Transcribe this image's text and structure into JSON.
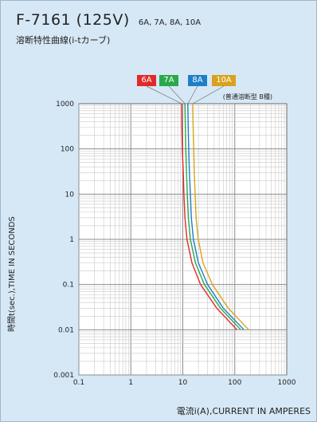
{
  "header": {
    "title": "F-7161 (125V)",
    "ratings": "6A, 7A, 8A, 10A",
    "subtitle": "溶断特性曲線(i-tカーブ)"
  },
  "chart_data": {
    "type": "line",
    "xscale": "log",
    "yscale": "log",
    "xlim": [
      0.1,
      1000
    ],
    "ylim": [
      0.001,
      1000
    ],
    "x_ticks": [
      "0.1",
      "1",
      "10",
      "100",
      "1000"
    ],
    "y_ticks": [
      "1000",
      "100",
      "10",
      "1",
      "0.1",
      "0.01",
      "0.001"
    ],
    "xlabel": "電流i(A),CURRENT  IN  AMPERES",
    "ylabel": "時間t(sec.),TIME  IN  SECONDS",
    "grid": true,
    "note": "(普通溶断型  B種)",
    "series": [
      {
        "name": "6A",
        "color": "#e02a2a",
        "points": [
          [
            9.5,
            1000
          ],
          [
            9.6,
            300
          ],
          [
            9.8,
            100
          ],
          [
            10.2,
            30
          ],
          [
            10.5,
            10
          ],
          [
            11,
            3
          ],
          [
            12,
            1
          ],
          [
            15,
            0.3
          ],
          [
            22,
            0.1
          ],
          [
            45,
            0.03
          ],
          [
            110,
            0.01
          ]
        ]
      },
      {
        "name": "7A",
        "color": "#2aa84a",
        "points": [
          [
            11,
            1000
          ],
          [
            11.2,
            300
          ],
          [
            11.4,
            100
          ],
          [
            11.8,
            30
          ],
          [
            12.2,
            10
          ],
          [
            12.8,
            3
          ],
          [
            14,
            1
          ],
          [
            17.5,
            0.3
          ],
          [
            26,
            0.1
          ],
          [
            53,
            0.03
          ],
          [
            130,
            0.01
          ]
        ]
      },
      {
        "name": "8A",
        "color": "#1e7fc8",
        "points": [
          [
            12.5,
            1000
          ],
          [
            12.7,
            300
          ],
          [
            13,
            100
          ],
          [
            13.4,
            30
          ],
          [
            14,
            10
          ],
          [
            14.6,
            3
          ],
          [
            16,
            1
          ],
          [
            20,
            0.3
          ],
          [
            30,
            0.1
          ],
          [
            60,
            0.03
          ],
          [
            150,
            0.01
          ]
        ]
      },
      {
        "name": "10A",
        "color": "#d9a21c",
        "points": [
          [
            15.5,
            1000
          ],
          [
            15.8,
            300
          ],
          [
            16.2,
            100
          ],
          [
            16.6,
            30
          ],
          [
            17.3,
            10
          ],
          [
            18,
            3
          ],
          [
            19.8,
            1
          ],
          [
            24.5,
            0.3
          ],
          [
            37,
            0.1
          ],
          [
            75,
            0.03
          ],
          [
            185,
            0.01
          ]
        ]
      }
    ]
  }
}
